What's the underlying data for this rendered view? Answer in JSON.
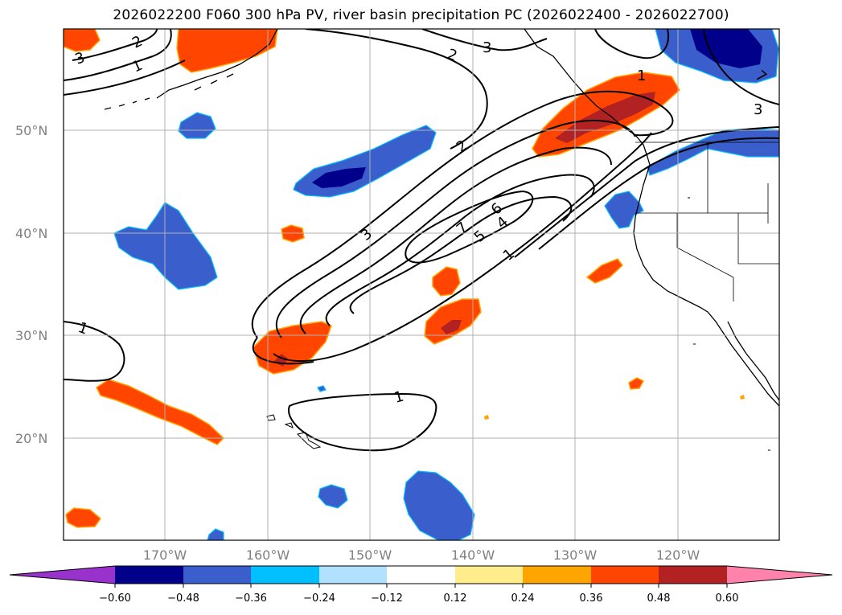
{
  "title": "2026022200 F060 300 hPa PV, river basin precipitation PC (2026022400 - 2026022700)",
  "map": {
    "lat_labels": [
      "50°N",
      "40°N",
      "30°N",
      "20°N"
    ],
    "lon_labels": [
      "170°W",
      "160°W",
      "150°W",
      "140°W",
      "130°W",
      "120°W"
    ],
    "pv_contour_labels": [
      "3",
      "2",
      "1",
      "2",
      "3",
      "1",
      "3",
      "7",
      "2",
      "3",
      "6",
      "7",
      "5",
      "4",
      "1",
      "1",
      "1"
    ]
  },
  "colorbar": {
    "colors": [
      "#9932cc",
      "#00008b",
      "#3a5fcd",
      "#00bfff",
      "#b0e2ff",
      "#ffffff",
      "#ffec8b",
      "#ffa500",
      "#ff4500",
      "#b22222",
      "#ff82ab"
    ],
    "tick_labels": [
      "−0.60",
      "−0.48",
      "−0.36",
      "−0.24",
      "−0.12",
      "0.12",
      "0.24",
      "0.36",
      "0.48",
      "0.60"
    ]
  }
}
